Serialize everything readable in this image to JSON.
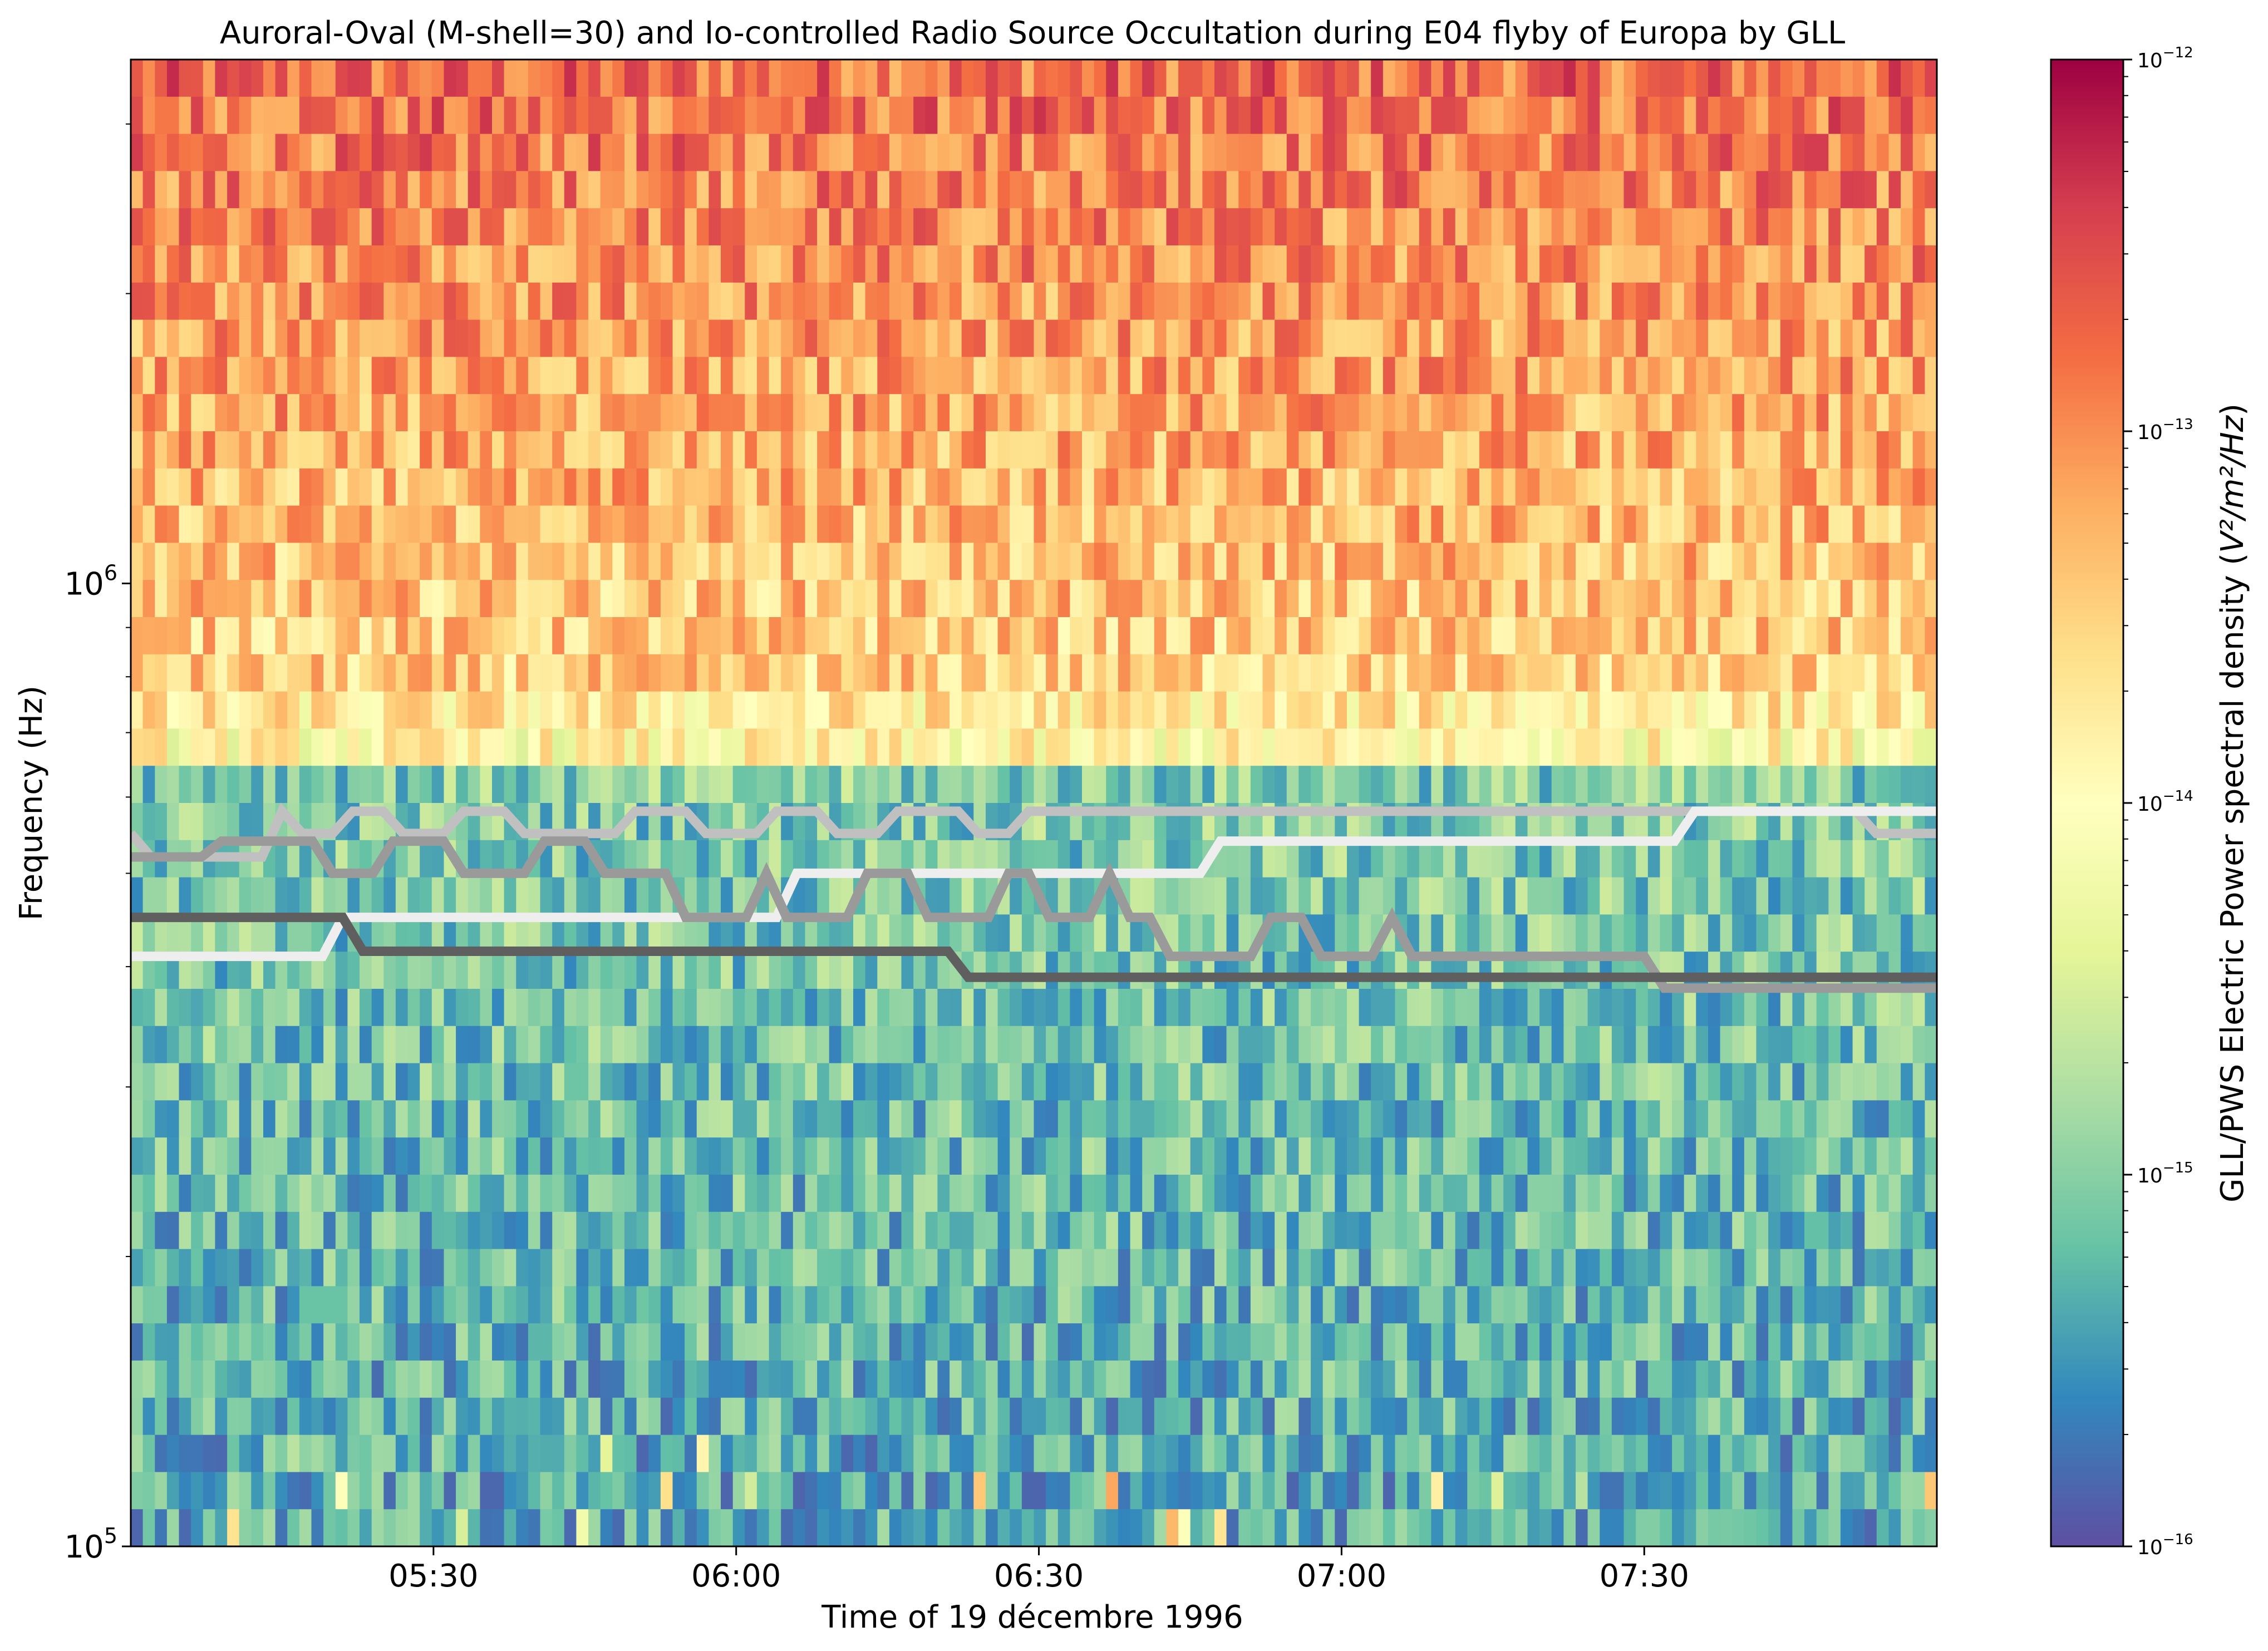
{
  "chart_data": {
    "type": "heatmap",
    "title": "Auroral-Oval (M-shell=30) and Io-controlled Radio Source Occultation during E04 flyby of Europa by GLL",
    "xlabel": "Time of 19 décembre 1996",
    "ylabel": "Frequency (Hz)",
    "x_start": "05:00",
    "x_end": "07:59",
    "xlim": [
      "05:00",
      "07:59"
    ],
    "ylim": [
      100000,
      3500000
    ],
    "y_scale": "log",
    "x_ticks": [
      "05:30",
      "06:00",
      "06:30",
      "07:00",
      "07:30"
    ],
    "y_ticks": [
      {
        "base": "10",
        "exp": "5",
        "value": 100000
      },
      {
        "base": "10",
        "exp": "6",
        "value": 1000000
      }
    ],
    "colorbar": {
      "label_main": "GLL/PWS Electric Power spectral density (",
      "label_units": "V²/m²/Hz",
      "label_close": ")",
      "scale": "log",
      "range": [
        1e-16,
        1e-12
      ],
      "colormap": "Spectral_r",
      "ticks": [
        {
          "base": "10",
          "exp": "−16",
          "value": 1e-16
        },
        {
          "base": "10",
          "exp": "−15",
          "value": 1e-15
        },
        {
          "base": "10",
          "exp": "−14",
          "value": 1e-14
        },
        {
          "base": "10",
          "exp": "−13",
          "value": 1e-13
        },
        {
          "base": "10",
          "exp": "−12",
          "value": 1e-12
        }
      ]
    },
    "overlay_lines": [
      {
        "color": "#c0c0c0",
        "points": [
          [
            "05:00",
            550000
          ],
          [
            "05:02",
            520000
          ],
          [
            "05:13",
            520000
          ],
          [
            "05:15",
            580000
          ],
          [
            "05:17",
            550000
          ],
          [
            "05:20",
            550000
          ],
          [
            "05:22",
            580000
          ],
          [
            "05:25",
            580000
          ],
          [
            "05:27",
            550000
          ],
          [
            "05:31",
            550000
          ],
          [
            "05:33",
            580000
          ],
          [
            "05:37",
            580000
          ],
          [
            "05:39",
            550000
          ],
          [
            "05:48",
            550000
          ],
          [
            "05:50",
            580000
          ],
          [
            "05:55",
            580000
          ],
          [
            "05:57",
            550000
          ],
          [
            "06:02",
            550000
          ],
          [
            "06:04",
            580000
          ],
          [
            "06:08",
            580000
          ],
          [
            "06:10",
            550000
          ],
          [
            "06:14",
            550000
          ],
          [
            "06:16",
            580000
          ],
          [
            "06:22",
            580000
          ],
          [
            "06:24",
            550000
          ],
          [
            "06:27",
            550000
          ],
          [
            "06:29",
            580000
          ],
          [
            "07:51",
            580000
          ],
          [
            "07:53",
            550000
          ],
          [
            "07:59",
            550000
          ]
        ]
      },
      {
        "color": "#eeeeee",
        "points": [
          [
            "05:00",
            410000
          ],
          [
            "05:19",
            410000
          ],
          [
            "05:21",
            450000
          ],
          [
            "06:04",
            450000
          ],
          [
            "06:06",
            500000
          ],
          [
            "06:46",
            500000
          ],
          [
            "06:48",
            540000
          ],
          [
            "07:33",
            540000
          ],
          [
            "07:35",
            580000
          ],
          [
            "07:59",
            580000
          ]
        ]
      },
      {
        "color": "#9a9a9a",
        "points": [
          [
            "05:00",
            520000
          ],
          [
            "05:07",
            520000
          ],
          [
            "05:09",
            540000
          ],
          [
            "05:18",
            540000
          ],
          [
            "05:20",
            500000
          ],
          [
            "05:24",
            500000
          ],
          [
            "05:26",
            540000
          ],
          [
            "05:31",
            540000
          ],
          [
            "05:33",
            500000
          ],
          [
            "05:39",
            500000
          ],
          [
            "05:41",
            540000
          ],
          [
            "05:45",
            540000
          ],
          [
            "05:47",
            500000
          ],
          [
            "05:53",
            500000
          ],
          [
            "05:55",
            450000
          ],
          [
            "06:01",
            450000
          ],
          [
            "06:03",
            500000
          ],
          [
            "06:05",
            450000
          ],
          [
            "06:11",
            450000
          ],
          [
            "06:13",
            500000
          ],
          [
            "06:17",
            500000
          ],
          [
            "06:19",
            450000
          ],
          [
            "06:25",
            450000
          ],
          [
            "06:27",
            500000
          ],
          [
            "06:29",
            500000
          ],
          [
            "06:31",
            450000
          ],
          [
            "06:35",
            450000
          ],
          [
            "06:37",
            500000
          ],
          [
            "06:39",
            450000
          ],
          [
            "06:41",
            450000
          ],
          [
            "06:43",
            410000
          ],
          [
            "06:51",
            410000
          ],
          [
            "06:53",
            450000
          ],
          [
            "06:56",
            450000
          ],
          [
            "06:58",
            410000
          ],
          [
            "07:03",
            410000
          ],
          [
            "07:05",
            450000
          ],
          [
            "07:07",
            410000
          ],
          [
            "07:30",
            410000
          ],
          [
            "07:32",
            380000
          ],
          [
            "07:59",
            380000
          ]
        ]
      },
      {
        "color": "#5f5f5f",
        "points": [
          [
            "05:00",
            450000
          ],
          [
            "05:21",
            450000
          ],
          [
            "05:23",
            415000
          ],
          [
            "06:21",
            415000
          ],
          [
            "06:23",
            390000
          ],
          [
            "07:59",
            390000
          ]
        ]
      }
    ]
  }
}
